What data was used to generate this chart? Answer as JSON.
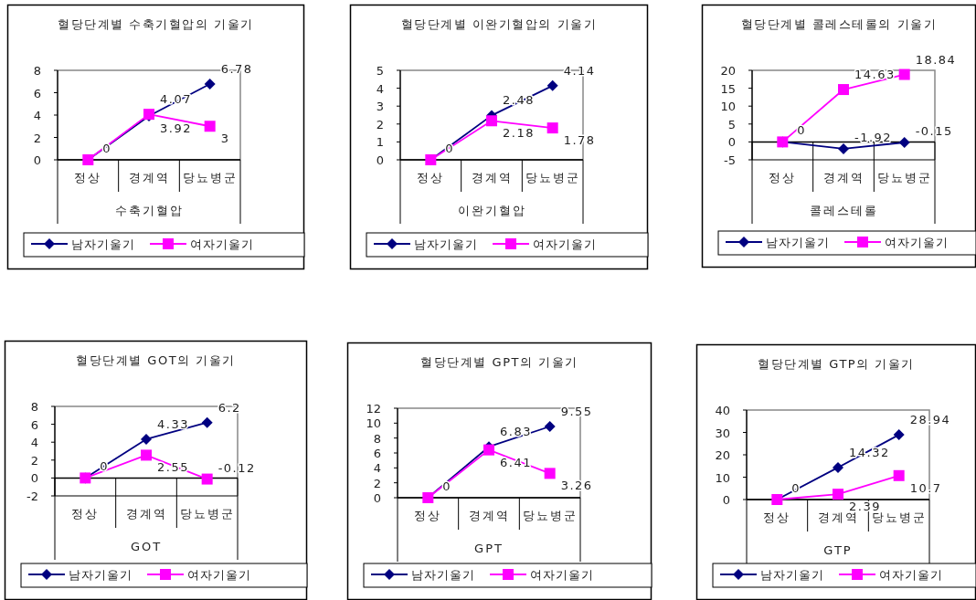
{
  "chart_data": [
    {
      "type": "line",
      "title": "혈당단계별 수축기혈압의 기울기",
      "xlabel": "수축기혈압",
      "categories": [
        "정상",
        "경계역",
        "당뇨병군"
      ],
      "ylim": [
        0,
        8
      ],
      "yticks": [
        0,
        2,
        4,
        6,
        8
      ],
      "legend": "bottom",
      "grid": false,
      "series": [
        {
          "name": "남자기울기",
          "color": "#000080",
          "marker": "diamond",
          "values": [
            0,
            3.92,
            6.78
          ],
          "value_labels": [
            "0",
            "3.92",
            "6.78"
          ]
        },
        {
          "name": "여자기울기",
          "color": "#ff00ff",
          "marker": "square",
          "values": [
            0,
            4.07,
            3
          ],
          "value_labels": [
            null,
            "4.07",
            "3"
          ]
        }
      ]
    },
    {
      "type": "line",
      "title": "혈당단계별 이완기혈압의 기울기",
      "xlabel": "이완기혈압",
      "categories": [
        "정상",
        "경계역",
        "당뇨병군"
      ],
      "ylim": [
        0,
        5
      ],
      "yticks": [
        0,
        1,
        2,
        3,
        4,
        5
      ],
      "legend": "bottom",
      "grid": false,
      "series": [
        {
          "name": "남자기울기",
          "color": "#000080",
          "marker": "diamond",
          "values": [
            0,
            2.48,
            4.14
          ],
          "value_labels": [
            "0",
            "2.48",
            "4.14"
          ]
        },
        {
          "name": "여자기울기",
          "color": "#ff00ff",
          "marker": "square",
          "values": [
            0,
            2.18,
            1.78
          ],
          "value_labels": [
            null,
            "2.18",
            "1.78"
          ]
        }
      ]
    },
    {
      "type": "line",
      "title": "혈당단계별 콜레스테롤의 기울기",
      "xlabel": "콜레스테롤",
      "categories": [
        "정상",
        "경계역",
        "당뇨병군"
      ],
      "ylim": [
        -5,
        20
      ],
      "yticks": [
        -5,
        0,
        5,
        10,
        15,
        20
      ],
      "legend": "bottom",
      "grid": false,
      "series": [
        {
          "name": "남자기울기",
          "color": "#000080",
          "marker": "diamond",
          "values": [
            0,
            -1.92,
            -0.15
          ],
          "value_labels": [
            "0",
            "-1.92",
            "-0.15"
          ]
        },
        {
          "name": "여자기울기",
          "color": "#ff00ff",
          "marker": "square",
          "values": [
            0,
            14.63,
            18.84
          ],
          "value_labels": [
            null,
            "14.63",
            "18.84"
          ]
        }
      ]
    },
    {
      "type": "line",
      "title": "혈당단계별 GOT의 기울기",
      "xlabel": "GOT",
      "categories": [
        "정상",
        "경계역",
        "당뇨병군"
      ],
      "ylim": [
        -2,
        8
      ],
      "yticks": [
        -2,
        0,
        2,
        4,
        6,
        8
      ],
      "legend": "bottom",
      "grid": false,
      "series": [
        {
          "name": "남자기울기",
          "color": "#000080",
          "marker": "diamond",
          "values": [
            0,
            4.33,
            6.2
          ],
          "value_labels": [
            "0",
            "4.33",
            "6.2"
          ]
        },
        {
          "name": "여자기울기",
          "color": "#ff00ff",
          "marker": "square",
          "values": [
            0,
            2.55,
            -0.12
          ],
          "value_labels": [
            null,
            "2.55",
            "-0.12"
          ]
        }
      ]
    },
    {
      "type": "line",
      "title": "혈당단계별 GPT의 기울기",
      "xlabel": "GPT",
      "categories": [
        "정상",
        "경계역",
        "당뇨병군"
      ],
      "ylim": [
        0,
        12
      ],
      "yticks": [
        0,
        2,
        4,
        6,
        8,
        10,
        12
      ],
      "legend": "bottom",
      "grid": false,
      "series": [
        {
          "name": "남자기울기",
          "color": "#000080",
          "marker": "diamond",
          "values": [
            0,
            6.83,
            9.55
          ],
          "value_labels": [
            "0",
            "6.83",
            "9.55"
          ]
        },
        {
          "name": "여자기울기",
          "color": "#ff00ff",
          "marker": "square",
          "values": [
            0,
            6.41,
            3.26
          ],
          "value_labels": [
            null,
            "6.41",
            "3.26"
          ]
        }
      ]
    },
    {
      "type": "line",
      "title": "혈당단계별 GTP의 기울기",
      "xlabel": "GTP",
      "categories": [
        "정상",
        "경계역",
        "당뇨병군"
      ],
      "ylim": [
        0,
        40
      ],
      "yticks": [
        0,
        10,
        20,
        30,
        40
      ],
      "legend": "bottom",
      "grid": false,
      "series": [
        {
          "name": "남자기울기",
          "color": "#000080",
          "marker": "diamond",
          "values": [
            0,
            14.32,
            28.94
          ],
          "value_labels": [
            "0",
            "14.32",
            "28.94"
          ]
        },
        {
          "name": "여자기울기",
          "color": "#ff00ff",
          "marker": "square",
          "values": [
            0,
            2.39,
            10.7
          ],
          "value_labels": [
            null,
            "2.39",
            "10.7"
          ]
        }
      ]
    }
  ]
}
